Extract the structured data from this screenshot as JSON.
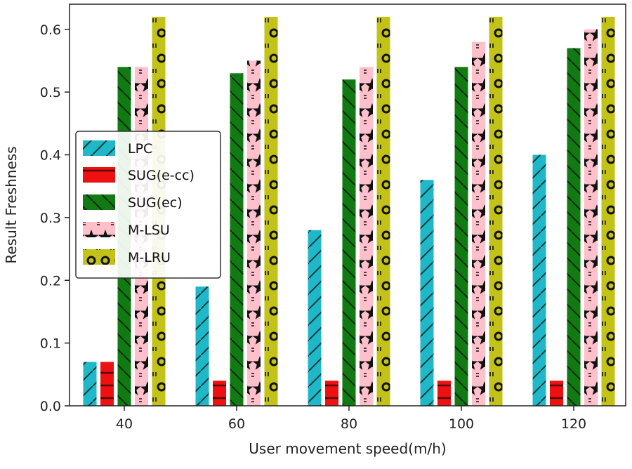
{
  "chart_data": {
    "type": "bar",
    "title": "",
    "xlabel": "User movement speed(m/h)",
    "ylabel": "Result Freshness",
    "categories": [
      "40",
      "60",
      "80",
      "100",
      "120"
    ],
    "ylim": [
      0,
      0.64
    ],
    "yticks": [
      "0.0",
      "0.1",
      "0.2",
      "0.3",
      "0.4",
      "0.5",
      "0.6"
    ],
    "grid": false,
    "legend_position": "center-left",
    "series": [
      {
        "name": "LPC",
        "color": "#1fb8c8",
        "pattern": "slash",
        "values": [
          0.07,
          0.19,
          0.28,
          0.36,
          0.4
        ]
      },
      {
        "name": "SUG(e-cc)",
        "color": "#ee1111",
        "pattern": "hline",
        "values": [
          0.07,
          0.04,
          0.04,
          0.04,
          0.04
        ]
      },
      {
        "name": "SUG(ec)",
        "color": "#127a12",
        "pattern": "backslash",
        "values": [
          0.54,
          0.53,
          0.52,
          0.54,
          0.57
        ]
      },
      {
        "name": "M-LSU",
        "color": "#ffc0cb",
        "pattern": "star",
        "values": [
          0.54,
          0.55,
          0.54,
          0.58,
          0.6
        ]
      },
      {
        "name": "M-LRU",
        "color": "#c2c218",
        "pattern": "circle",
        "values": [
          0.62,
          0.62,
          0.62,
          0.62,
          0.62
        ]
      }
    ]
  }
}
